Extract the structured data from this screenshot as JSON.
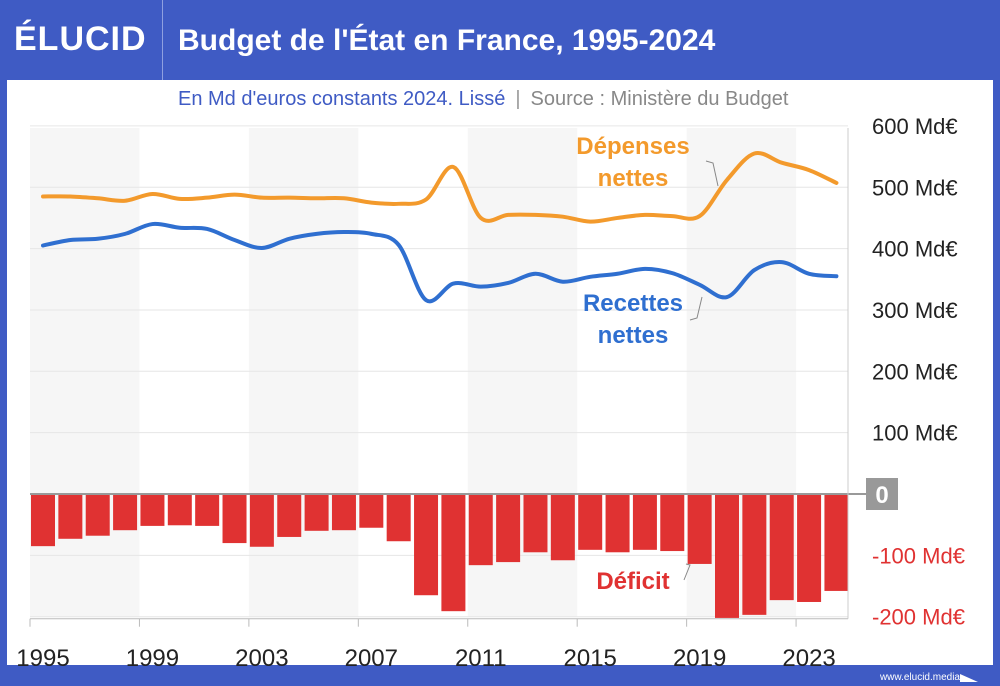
{
  "header": {
    "logo": "ÉLUCID",
    "title": "Budget de l'État en France, 1995-2024"
  },
  "subtitle": {
    "unit": "En Md d'euros constants 2024. Lissé",
    "separator": "|",
    "source": "Source : Ministère du Budget"
  },
  "footer": {
    "url": "www.elucid.media"
  },
  "chart_data": {
    "type": "line+bar",
    "title": "Budget de l'État en France, 1995-2024",
    "ylim": [
      -200,
      600
    ],
    "yticks": [
      {
        "v": 600,
        "label": "600 Md€"
      },
      {
        "v": 500,
        "label": "500 Md€"
      },
      {
        "v": 400,
        "label": "400 Md€"
      },
      {
        "v": 300,
        "label": "300 Md€"
      },
      {
        "v": 200,
        "label": "200 Md€"
      },
      {
        "v": 100,
        "label": "100 Md€"
      },
      {
        "v": 0,
        "label": "0"
      },
      {
        "v": -100,
        "label": "-100 Md€"
      },
      {
        "v": -200,
        "label": "-200 Md€"
      }
    ],
    "xticks": [
      1995,
      1999,
      2003,
      2007,
      2011,
      2015,
      2019,
      2023
    ],
    "x": [
      1995,
      1996,
      1997,
      1998,
      1999,
      2000,
      2001,
      2002,
      2003,
      2004,
      2005,
      2006,
      2007,
      2008,
      2009,
      2010,
      2011,
      2012,
      2013,
      2014,
      2015,
      2016,
      2017,
      2018,
      2019,
      2020,
      2021,
      2022,
      2023,
      2024
    ],
    "series": [
      {
        "name": "Dépenses nettes",
        "label_lines": [
          "Dépenses",
          "nettes"
        ],
        "type": "line",
        "color": "#f39a2c",
        "values": [
          485,
          485,
          482,
          478,
          489,
          481,
          483,
          488,
          483,
          483,
          482,
          482,
          475,
          473,
          480,
          533,
          450,
          455,
          455,
          452,
          444,
          450,
          455,
          453,
          453,
          512,
          555,
          540,
          528,
          507
        ]
      },
      {
        "name": "Recettes nettes",
        "label_lines": [
          "Recettes",
          "nettes"
        ],
        "type": "line",
        "color": "#2f6fd0",
        "values": [
          405,
          414,
          416,
          424,
          440,
          434,
          432,
          414,
          401,
          416,
          424,
          427,
          424,
          406,
          316,
          343,
          338,
          344,
          359,
          346,
          354,
          359,
          367,
          360,
          341,
          321,
          365,
          378,
          359,
          355
        ]
      },
      {
        "name": "Déficit",
        "label_lines": [
          "Déficit"
        ],
        "type": "bar",
        "color": "#e03232",
        "values": [
          -85,
          -73,
          -68,
          -59,
          -52,
          -51,
          -52,
          -80,
          -86,
          -70,
          -60,
          -59,
          -55,
          -77,
          -165,
          -191,
          -116,
          -111,
          -95,
          -108,
          -91,
          -95,
          -91,
          -93,
          -114,
          -202,
          -197,
          -173,
          -176,
          -158
        ]
      }
    ]
  }
}
